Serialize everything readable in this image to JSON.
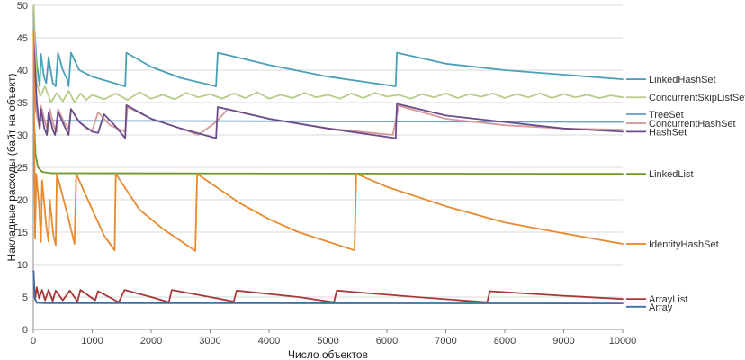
{
  "chart_data": {
    "type": "line",
    "title": "",
    "xlabel": "Число объектов",
    "ylabel": "Накладные расходы (байт на объект)",
    "xlim": [
      0,
      10000
    ],
    "ylim": [
      0,
      50
    ],
    "x_ticks": [
      0,
      1000,
      2000,
      3000,
      4000,
      5000,
      6000,
      7000,
      8000,
      9000,
      10000
    ],
    "y_ticks": [
      0,
      5,
      10,
      15,
      20,
      25,
      30,
      35,
      40,
      45,
      50
    ],
    "grid": "horizontal",
    "legend_position": "right",
    "series": [
      {
        "name": "LinkedHashSet",
        "color": "#4aa0b8",
        "legend_y": 38.6,
        "points": [
          [
            10,
            48
          ],
          [
            60,
            41
          ],
          [
            110,
            37.5
          ],
          [
            130,
            42.5
          ],
          [
            180,
            39
          ],
          [
            220,
            38
          ],
          [
            260,
            42
          ],
          [
            330,
            38
          ],
          [
            380,
            37.5
          ],
          [
            420,
            42.7
          ],
          [
            500,
            40
          ],
          [
            580,
            38.5
          ],
          [
            600,
            37.5
          ],
          [
            640,
            42.7
          ],
          [
            780,
            40
          ],
          [
            1000,
            39
          ],
          [
            1300,
            38.2
          ],
          [
            1560,
            37.5
          ],
          [
            1580,
            42.7
          ],
          [
            2000,
            40.5
          ],
          [
            2500,
            38.8
          ],
          [
            3100,
            37.5
          ],
          [
            3130,
            42.7
          ],
          [
            4000,
            40.8
          ],
          [
            5000,
            39
          ],
          [
            6150,
            37.5
          ],
          [
            6170,
            42.7
          ],
          [
            7000,
            41
          ],
          [
            8000,
            40
          ],
          [
            9000,
            39.3
          ],
          [
            10000,
            38.6
          ]
        ]
      },
      {
        "name": "ConcurrentSkipListSet",
        "color": "#b6cc8a",
        "legend_y": 35.8,
        "points": [
          [
            10,
            50
          ],
          [
            30,
            44
          ],
          [
            60,
            38
          ],
          [
            120,
            36
          ],
          [
            200,
            37.5
          ],
          [
            300,
            35
          ],
          [
            400,
            36.5
          ],
          [
            500,
            35.2
          ],
          [
            600,
            36.8
          ],
          [
            700,
            35
          ],
          [
            800,
            36.4
          ],
          [
            900,
            35.4
          ],
          [
            1000,
            36.2
          ],
          [
            1200,
            35.5
          ],
          [
            1400,
            36.4
          ],
          [
            1600,
            35.4
          ],
          [
            1800,
            36.6
          ],
          [
            2000,
            35.6
          ],
          [
            2200,
            36.2
          ],
          [
            2400,
            35.5
          ],
          [
            2600,
            36.5
          ],
          [
            2800,
            35.8
          ],
          [
            3000,
            36.3
          ],
          [
            3200,
            35.6
          ],
          [
            3400,
            36.4
          ],
          [
            3600,
            35.7
          ],
          [
            3800,
            36.6
          ],
          [
            4000,
            35.6
          ],
          [
            4200,
            36.2
          ],
          [
            4400,
            35.7
          ],
          [
            4600,
            36.5
          ],
          [
            4800,
            35.8
          ],
          [
            5000,
            36.2
          ],
          [
            5200,
            35.6
          ],
          [
            5400,
            36.4
          ],
          [
            5600,
            35.7
          ],
          [
            5800,
            36.5
          ],
          [
            6000,
            35.9
          ],
          [
            6200,
            36.2
          ],
          [
            6400,
            35.6
          ],
          [
            6600,
            36.3
          ],
          [
            6800,
            35.8
          ],
          [
            7000,
            36.4
          ],
          [
            7200,
            35.7
          ],
          [
            7400,
            36.3
          ],
          [
            7600,
            35.9
          ],
          [
            7800,
            36.4
          ],
          [
            8000,
            35.7
          ],
          [
            8200,
            36.3
          ],
          [
            8400,
            35.8
          ],
          [
            8600,
            36.4
          ],
          [
            8800,
            35.7
          ],
          [
            9000,
            36.3
          ],
          [
            9200,
            35.8
          ],
          [
            9400,
            36.2
          ],
          [
            9600,
            35.7
          ],
          [
            9800,
            36.1
          ],
          [
            10000,
            35.8
          ]
        ]
      },
      {
        "name": "TreeSet",
        "color": "#6fa0c8",
        "legend_y": 33.2,
        "points": [
          [
            10,
            38
          ],
          [
            40,
            34
          ],
          [
            80,
            32.4
          ],
          [
            200,
            32.2
          ],
          [
            10000,
            32
          ]
        ]
      },
      {
        "name": "ConcurrentHashSet",
        "color": "#d89a98",
        "legend_y": 31.8,
        "points": [
          [
            10,
            46
          ],
          [
            30,
            38
          ],
          [
            60,
            33
          ],
          [
            110,
            31
          ],
          [
            130,
            34.5
          ],
          [
            200,
            32
          ],
          [
            250,
            30.5
          ],
          [
            280,
            34
          ],
          [
            360,
            31
          ],
          [
            400,
            30.5
          ],
          [
            420,
            34
          ],
          [
            520,
            32
          ],
          [
            600,
            31
          ],
          [
            640,
            34
          ],
          [
            780,
            32
          ],
          [
            900,
            31
          ],
          [
            1000,
            30.7
          ],
          [
            1100,
            33.5
          ],
          [
            1300,
            31.5
          ],
          [
            1560,
            30.5
          ],
          [
            1600,
            34.3
          ],
          [
            2000,
            32.5
          ],
          [
            2500,
            31
          ],
          [
            2800,
            30
          ],
          [
            3100,
            32
          ],
          [
            3300,
            34
          ],
          [
            4000,
            32.5
          ],
          [
            5000,
            31
          ],
          [
            6100,
            30
          ],
          [
            6200,
            34.5
          ],
          [
            7000,
            32.5
          ],
          [
            8000,
            31.5
          ],
          [
            9000,
            31
          ],
          [
            10000,
            30.8
          ]
        ]
      },
      {
        "name": "HashSet",
        "color": "#6a4c8c",
        "legend_y": 30.5,
        "points": [
          [
            10,
            44
          ],
          [
            60,
            35
          ],
          [
            110,
            31
          ],
          [
            130,
            34
          ],
          [
            190,
            31
          ],
          [
            230,
            30
          ],
          [
            260,
            33.5
          ],
          [
            330,
            30.8
          ],
          [
            370,
            30
          ],
          [
            420,
            33.6
          ],
          [
            520,
            31.5
          ],
          [
            600,
            30
          ],
          [
            640,
            34
          ],
          [
            780,
            32
          ],
          [
            1000,
            30.5
          ],
          [
            1100,
            30.3
          ],
          [
            1200,
            33.2
          ],
          [
            1380,
            31.5
          ],
          [
            1560,
            29.5
          ],
          [
            1580,
            34.6
          ],
          [
            2000,
            32.5
          ],
          [
            2500,
            31
          ],
          [
            3100,
            29.5
          ],
          [
            3130,
            34.3
          ],
          [
            4000,
            32.5
          ],
          [
            5000,
            31
          ],
          [
            6150,
            29.5
          ],
          [
            6170,
            34.8
          ],
          [
            7000,
            33
          ],
          [
            8000,
            32
          ],
          [
            9000,
            31
          ],
          [
            10000,
            30.5
          ]
        ]
      },
      {
        "name": "LinkedList",
        "color": "#6a9a2a",
        "legend_y": 24,
        "points": [
          [
            10,
            33
          ],
          [
            40,
            27
          ],
          [
            80,
            25
          ],
          [
            150,
            24.3
          ],
          [
            300,
            24.1
          ],
          [
            10000,
            24
          ]
        ]
      },
      {
        "name": "IdentityHashSet",
        "color": "#e8892e",
        "legend_y": 13.2,
        "points": [
          [
            5,
            46
          ],
          [
            30,
            14
          ],
          [
            50,
            24
          ],
          [
            100,
            19
          ],
          [
            130,
            13.5
          ],
          [
            150,
            23
          ],
          [
            220,
            16
          ],
          [
            260,
            13.5
          ],
          [
            280,
            20
          ],
          [
            340,
            14.5
          ],
          [
            380,
            13
          ],
          [
            400,
            24
          ],
          [
            600,
            17
          ],
          [
            700,
            13.2
          ],
          [
            730,
            24
          ],
          [
            1000,
            18.5
          ],
          [
            1200,
            14.5
          ],
          [
            1380,
            12.2
          ],
          [
            1400,
            24
          ],
          [
            1800,
            18.5
          ],
          [
            2200,
            15.5
          ],
          [
            2750,
            12.1
          ],
          [
            2780,
            24
          ],
          [
            3500,
            19.5
          ],
          [
            4000,
            17
          ],
          [
            4500,
            15
          ],
          [
            5450,
            12.2
          ],
          [
            5480,
            24
          ],
          [
            6000,
            22
          ],
          [
            7000,
            19
          ],
          [
            8000,
            16.5
          ],
          [
            9000,
            14.8
          ],
          [
            10000,
            13.2
          ]
        ]
      },
      {
        "name": "ArrayList",
        "color": "#a83838",
        "legend_y": 4.7,
        "points": [
          [
            5,
            9
          ],
          [
            30,
            4.6
          ],
          [
            60,
            6.5
          ],
          [
            100,
            4.8
          ],
          [
            150,
            6.1
          ],
          [
            200,
            4.5
          ],
          [
            260,
            6.1
          ],
          [
            330,
            4.4
          ],
          [
            380,
            6
          ],
          [
            500,
            4.5
          ],
          [
            620,
            6
          ],
          [
            750,
            4.3
          ],
          [
            800,
            6.1
          ],
          [
            1050,
            4.5
          ],
          [
            1100,
            5.9
          ],
          [
            1450,
            4.2
          ],
          [
            1550,
            6.1
          ],
          [
            2000,
            5
          ],
          [
            2300,
            4.2
          ],
          [
            2350,
            6.1
          ],
          [
            3000,
            5
          ],
          [
            3400,
            4.3
          ],
          [
            3450,
            6
          ],
          [
            4500,
            5
          ],
          [
            5100,
            4.2
          ],
          [
            5150,
            6
          ],
          [
            6500,
            5
          ],
          [
            7700,
            4.2
          ],
          [
            7750,
            5.9
          ],
          [
            9000,
            5.2
          ],
          [
            10000,
            4.7
          ]
        ]
      },
      {
        "name": "Array",
        "color": "#3f6fa8",
        "legend_y": 3.5,
        "points": [
          [
            5,
            9
          ],
          [
            20,
            5
          ],
          [
            60,
            4.1
          ],
          [
            200,
            4.05
          ],
          [
            10000,
            4.02
          ]
        ]
      }
    ]
  }
}
